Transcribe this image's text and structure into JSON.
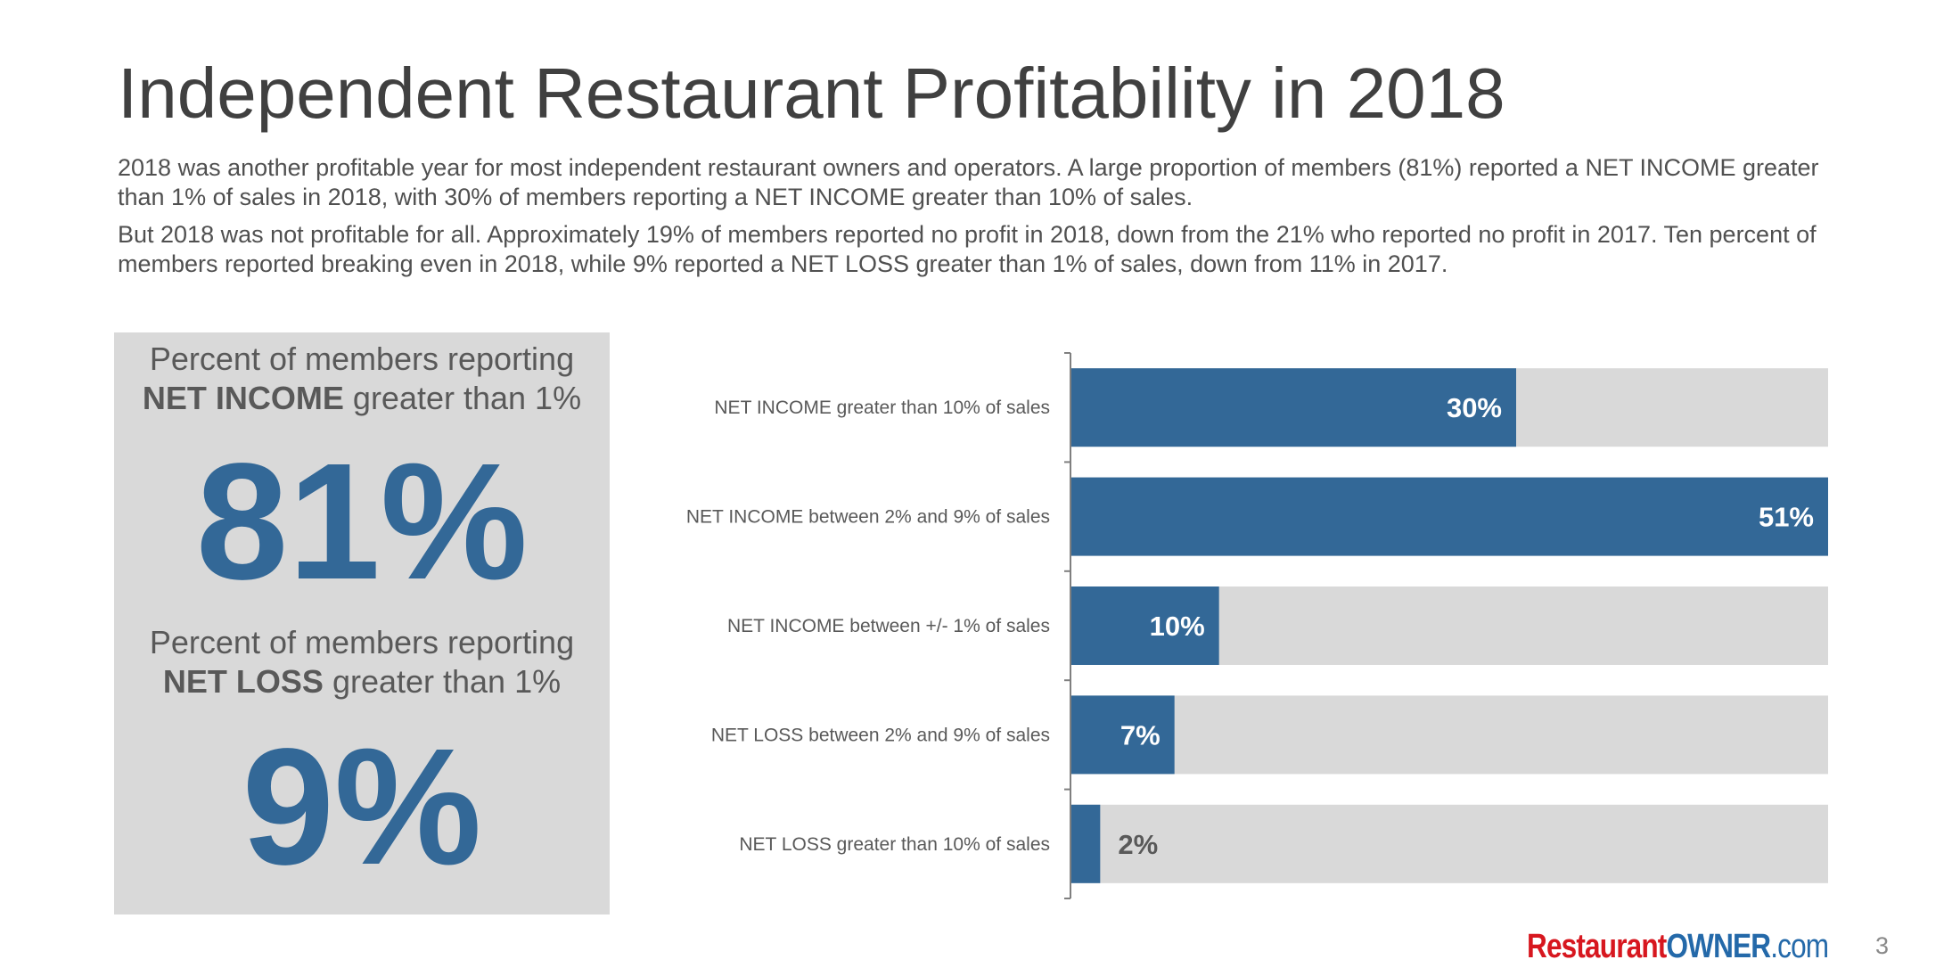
{
  "slide": {
    "title": "Independent Restaurant Profitability in 2018",
    "paragraphs": [
      "2018 was another profitable year for most independent restaurant owners and operators. A large proportion of members (81%) reported a NET INCOME greater than 1% of sales in 2018, with 30% of members reporting a NET INCOME greater than 10% of sales.",
      "But 2018 was not profitable for all. Approximately 19% of members reported no profit in 2018, down from the 21% who reported no profit in 2017. Ten percent of members reported breaking even in 2018, while 9% reported a NET LOSS greater than 1% of sales, down from 11% in 2017."
    ],
    "page_number": "3"
  },
  "kpi_panel": {
    "income": {
      "line1": "Percent of members reporting",
      "bold": "NET INCOME",
      "rest": "greater than 1%",
      "value": "81%"
    },
    "loss": {
      "line1": "Percent of members reporting",
      "bold": "NET LOSS",
      "rest": "greater than 1%",
      "value": "9%"
    }
  },
  "footer": {
    "logo_part1": "Restaurant",
    "logo_part2": "OWNER",
    "logo_part3": ".com"
  },
  "colors": {
    "bar": "#336897",
    "track": "#d9d9d9",
    "axis": "#7f7f7f",
    "label_inside": "#ffffff",
    "label_outside": "#595959",
    "logo_red": "#d7171f",
    "logo_blue": "#2469a9"
  },
  "chart_data": {
    "type": "bar",
    "orientation": "horizontal",
    "title": "",
    "xlabel": "",
    "ylabel": "",
    "categories": [
      "NET INCOME greater than 10% of sales",
      "NET INCOME between 2% and 9% of sales",
      "NET INCOME between +/- 1% of sales",
      "NET LOSS between 2% and 9% of sales",
      "NET LOSS greater than 10% of sales"
    ],
    "values": [
      30,
      51,
      10,
      7,
      2
    ],
    "value_labels": [
      "30%",
      "51%",
      "10%",
      "7%",
      "2%"
    ],
    "units": "%",
    "xlim": [
      0,
      51
    ],
    "background_track": true,
    "grid": false,
    "legend": "none"
  }
}
